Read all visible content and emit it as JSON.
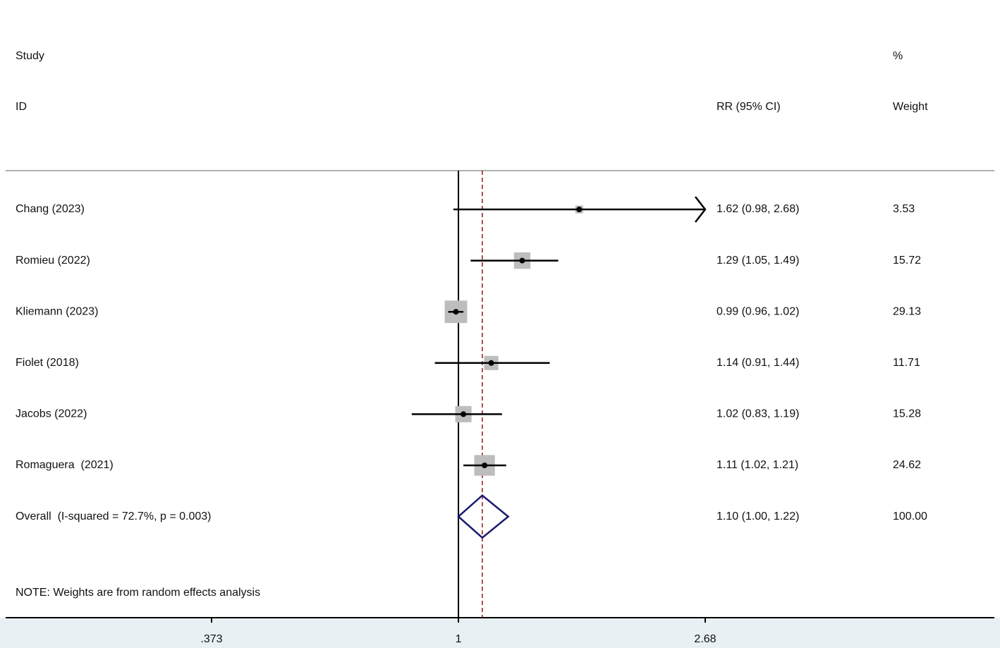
{
  "chart_data": {
    "type": "forest",
    "headers": {
      "study": [
        "Study",
        "ID"
      ],
      "estimate": "RR (95% CI)",
      "weight": [
        "%",
        "Weight"
      ]
    },
    "studies": [
      {
        "name": "Chang (2023)",
        "rr": 1.62,
        "lower": 0.98,
        "upper": 2.68,
        "label": "1.62 (0.98, 2.68)",
        "weight": 3.53
      },
      {
        "name": "Romieu (2022)",
        "rr": 1.29,
        "lower": 1.05,
        "upper": 1.49,
        "label": "1.29 (1.05, 1.49)",
        "weight": 15.72
      },
      {
        "name": "Kliemann (2023)",
        "rr": 0.99,
        "lower": 0.96,
        "upper": 1.02,
        "label": "0.99 (0.96, 1.02)",
        "weight": 29.13
      },
      {
        "name": "Fiolet (2018)",
        "rr": 1.14,
        "lower": 0.91,
        "upper": 1.44,
        "label": "1.14 (0.91, 1.44)",
        "weight": 11.71
      },
      {
        "name": "Jacobs (2022)",
        "rr": 1.02,
        "lower": 0.83,
        "upper": 1.19,
        "label": "1.02 (0.83, 1.19)",
        "weight": 15.28
      },
      {
        "name": "Romaguera  (2021)",
        "rr": 1.11,
        "lower": 1.02,
        "upper": 1.21,
        "label": "1.11 (1.02, 1.21)",
        "weight": 24.62
      }
    ],
    "overall": {
      "name": "Overall  (I-squared = 72.7%, p = 0.003)",
      "rr": 1.1,
      "lower": 1.0,
      "upper": 1.22,
      "label": "1.10 (1.00, 1.22)",
      "weight": {
        "value": 100,
        "label": "100.00"
      }
    },
    "note": "NOTE: Weights are from random effects analysis",
    "xscale": "log",
    "xlim": [
      0.373,
      2.68
    ],
    "xticks": [
      {
        "value": 0.373,
        "label": ".373"
      },
      1,
      2.68
    ],
    "null_line": 1,
    "box_color": "#bdbdbd",
    "diamond_color": "#1a1a6e",
    "overall_line_color": "#8b1a1a"
  }
}
